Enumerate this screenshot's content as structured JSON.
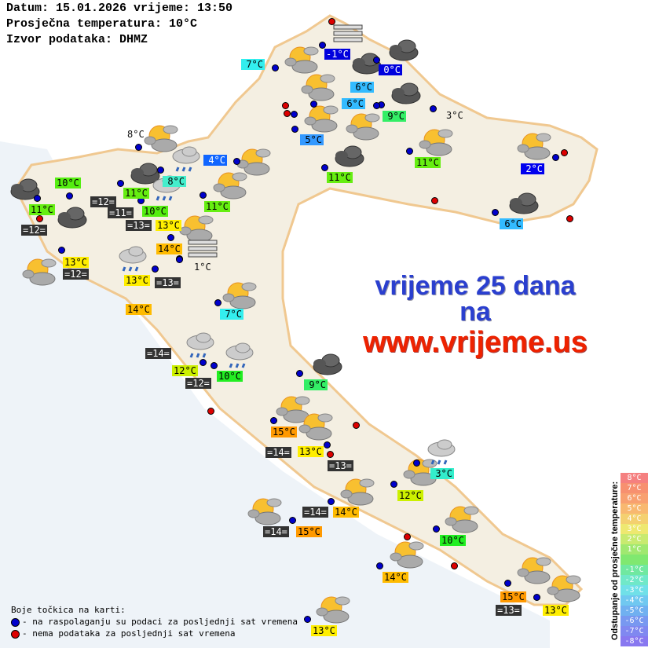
{
  "header": {
    "date_line": "Datum: 15.01.2026 vrijeme: 13:50",
    "avg_line": "Prosječna temperatura: 10°C",
    "source_line": "Izvor podataka: DHMZ"
  },
  "promo": {
    "line1": "vrijeme 25 dana",
    "line2": "na",
    "line3": "www.vrijeme.us",
    "color_blue": "#2a3fcf",
    "color_red": "#ee2200"
  },
  "temperature_labels": [
    {
      "text": "7°C",
      "bg": "#33eeee",
      "fg": "#000"
    },
    {
      "text": "-1°C",
      "bg": "#0000dd",
      "fg": "#fff"
    },
    {
      "text": "0°C",
      "bg": "#0000dd",
      "fg": "#fff"
    },
    {
      "text": "6°C",
      "bg": "#33bbff",
      "fg": "#000"
    },
    {
      "text": "6°C",
      "bg": "#33bbff",
      "fg": "#000"
    },
    {
      "text": "9°C",
      "bg": "#33ee66",
      "fg": "#000"
    },
    {
      "text": "3°C",
      "bg": "",
      "fg": "#111"
    },
    {
      "text": "5°C",
      "bg": "#3399ff",
      "fg": "#000"
    },
    {
      "text": "11°C",
      "bg": "#66ee11",
      "fg": "#000"
    },
    {
      "text": "2°C",
      "bg": "#0000ee",
      "fg": "#fff"
    },
    {
      "text": "6°C",
      "bg": "#33bbff",
      "fg": "#000"
    },
    {
      "text": "4°C",
      "bg": "#1166ff",
      "fg": "#fff"
    },
    {
      "text": "11°C",
      "bg": "#66ee11",
      "fg": "#000"
    },
    {
      "text": "11°C",
      "bg": "#66ee11",
      "fg": "#000"
    },
    {
      "text": "8°C",
      "bg": "",
      "fg": "#111"
    },
    {
      "text": "10°C",
      "bg": "#55ee11",
      "fg": "#000"
    },
    {
      "text": "11°C",
      "bg": "#66ee11",
      "fg": "#000"
    },
    {
      "text": "=12=",
      "bg": "#333333",
      "fg": "#fff"
    },
    {
      "text": "=12=",
      "bg": "#333333",
      "fg": "#fff"
    },
    {
      "text": "11°C",
      "bg": "#66ee11",
      "fg": "#000"
    },
    {
      "text": "8°C",
      "bg": "#44eecc",
      "fg": "#000"
    },
    {
      "text": "=11=",
      "bg": "#333333",
      "fg": "#fff"
    },
    {
      "text": "10°C",
      "bg": "#55ee11",
      "fg": "#000"
    },
    {
      "text": "13°C",
      "bg": "#ffee00",
      "fg": "#000"
    },
    {
      "text": "=13=",
      "bg": "#333333",
      "fg": "#fff"
    },
    {
      "text": "14°C",
      "bg": "#ffbb00",
      "fg": "#000"
    },
    {
      "text": "1°C",
      "bg": "",
      "fg": "#111"
    },
    {
      "text": "13°C",
      "bg": "#ffee00",
      "fg": "#000"
    },
    {
      "text": "=12=",
      "bg": "#333333",
      "fg": "#fff"
    },
    {
      "text": "13°C",
      "bg": "#ffee00",
      "fg": "#000"
    },
    {
      "text": "=13=",
      "bg": "#333333",
      "fg": "#fff"
    },
    {
      "text": "14°C",
      "bg": "#ffbb00",
      "fg": "#000"
    },
    {
      "text": "7°C",
      "bg": "#33eeee",
      "fg": "#000"
    },
    {
      "text": "=14=",
      "bg": "#333333",
      "fg": "#fff"
    },
    {
      "text": "12°C",
      "bg": "#ccf000",
      "fg": "#000"
    },
    {
      "text": "10°C",
      "bg": "#22ee22",
      "fg": "#000"
    },
    {
      "text": "=12=",
      "bg": "#333333",
      "fg": "#fff"
    },
    {
      "text": "9°C",
      "bg": "#33ee66",
      "fg": "#000"
    },
    {
      "text": "15°C",
      "bg": "#ff9900",
      "fg": "#000"
    },
    {
      "text": "=14=",
      "bg": "#333333",
      "fg": "#fff"
    },
    {
      "text": "13°C",
      "bg": "#ffee00",
      "fg": "#000"
    },
    {
      "text": "=13=",
      "bg": "#333333",
      "fg": "#fff"
    },
    {
      "text": "3°C",
      "bg": "#33eecc",
      "fg": "#000"
    },
    {
      "text": "12°C",
      "bg": "#ccf000",
      "fg": "#000"
    },
    {
      "text": "=14=",
      "bg": "#333333",
      "fg": "#fff"
    },
    {
      "text": "14°C",
      "bg": "#ffbb00",
      "fg": "#000"
    },
    {
      "text": "=14=",
      "bg": "#333333",
      "fg": "#fff"
    },
    {
      "text": "15°C",
      "bg": "#ff9900",
      "fg": "#000"
    },
    {
      "text": "10°C",
      "bg": "#22ee22",
      "fg": "#000"
    },
    {
      "text": "14°C",
      "bg": "#ffbb00",
      "fg": "#000"
    },
    {
      "text": "15°C",
      "bg": "#ff9900",
      "fg": "#000"
    },
    {
      "text": "=13=",
      "bg": "#333333",
      "fg": "#fff"
    },
    {
      "text": "13°C",
      "bg": "#ffee00",
      "fg": "#000"
    },
    {
      "text": "13°C",
      "bg": "#ffee00",
      "fg": "#000"
    }
  ],
  "weather_icons": [
    "partly-cloudy",
    "dark-cloud",
    "rain-cloud",
    "fog"
  ],
  "dot_colors": {
    "available": "#0000cc",
    "missing": "#dd0000"
  },
  "legend": {
    "title": "Boje točkica na karti:",
    "blue": "- na raspolaganju su podaci za posljednji sat vremena",
    "red": "- nema podataka za posljednji sat vremena"
  },
  "scale": {
    "title": "Odstupanje od prosječne temperature:",
    "items": [
      {
        "label": "8°C",
        "color": "#f58080"
      },
      {
        "label": "7°C",
        "color": "#f79070"
      },
      {
        "label": "6°C",
        "color": "#f8a070"
      },
      {
        "label": "5°C",
        "color": "#f8b870"
      },
      {
        "label": "4°C",
        "color": "#f4d070"
      },
      {
        "label": "3°C",
        "color": "#eee870"
      },
      {
        "label": "2°C",
        "color": "#c8ea70"
      },
      {
        "label": "1°C",
        "color": "#a0e870"
      },
      {
        "label": "",
        "color": "#80e870"
      },
      {
        "label": "-1°C",
        "color": "#70e8a0"
      },
      {
        "label": "-2°C",
        "color": "#70e8c8"
      },
      {
        "label": "-3°C",
        "color": "#70e0e8"
      },
      {
        "label": "-4°C",
        "color": "#70c8f0"
      },
      {
        "label": "-5°C",
        "color": "#70b0f0"
      },
      {
        "label": "-6°C",
        "color": "#7898f0"
      },
      {
        "label": "-7°C",
        "color": "#8088f0"
      },
      {
        "label": "-8°C",
        "color": "#8878f0"
      }
    ]
  }
}
